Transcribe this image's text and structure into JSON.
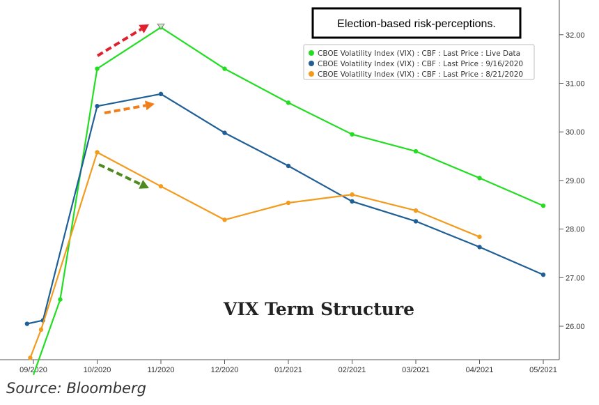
{
  "chart_data": {
    "type": "line",
    "title": "VIX Term Structure",
    "annotation_box": "Election-based risk-perceptions.",
    "categories": [
      "09/2020",
      "10/2020",
      "11/2020",
      "12/2020",
      "01/2021",
      "02/2021",
      "03/2021",
      "04/2021",
      "05/2021"
    ],
    "y_ticks": [
      "26.00",
      "27.00",
      "28.00",
      "29.00",
      "30.00",
      "31.00",
      "32.00"
    ],
    "ylim": [
      25.4,
      32.7
    ],
    "grid": false,
    "legend_position": "top-right",
    "series": [
      {
        "name": "CBOE Volatility Index (VIX) : CBF : Last Price : Live Data",
        "color": "#22dd22",
        "points": [
          [
            0,
            25.0
          ],
          [
            0.42,
            26.55
          ],
          [
            1,
            31.3
          ],
          [
            2,
            32.15
          ],
          [
            3,
            31.3
          ],
          [
            4,
            30.6
          ],
          [
            5,
            29.95
          ],
          [
            6,
            29.6
          ],
          [
            7,
            29.05
          ],
          [
            8,
            28.48
          ]
        ]
      },
      {
        "name": "CBOE Volatility Index (VIX) : CBF : Last Price : 9/16/2020",
        "color": "#1f5f96",
        "points": [
          [
            -0.1,
            26.05
          ],
          [
            0.15,
            26.12
          ],
          [
            1,
            30.53
          ],
          [
            2,
            30.78
          ],
          [
            3,
            29.98
          ],
          [
            4,
            29.3
          ],
          [
            5,
            28.57
          ],
          [
            6,
            28.16
          ],
          [
            7,
            27.63
          ],
          [
            8,
            27.06
          ]
        ]
      },
      {
        "name": "CBOE Volatility Index (VIX) : CBF : Last Price : 8/21/2020",
        "color": "#f29b1d",
        "points": [
          [
            -0.05,
            25.35
          ],
          [
            0.12,
            25.93
          ],
          [
            1,
            29.58
          ],
          [
            2,
            28.88
          ],
          [
            3,
            28.19
          ],
          [
            4,
            28.54
          ],
          [
            5,
            28.71
          ],
          [
            6,
            28.38
          ],
          [
            7,
            27.84
          ]
        ]
      }
    ],
    "arrows": [
      {
        "color": "#e0202c"
      },
      {
        "color": "#f07f1a"
      },
      {
        "color": "#4f8a1e"
      }
    ]
  },
  "source": "Source: Bloomberg"
}
